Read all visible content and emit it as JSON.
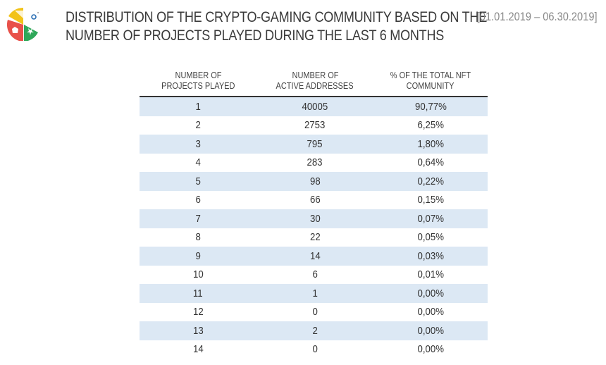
{
  "title_line1": "DISTRIBUTION OF THE CRYPTO-GAMING COMMUNITY BASED ON THE",
  "title_line2": "NUMBER OF PROJECTS PLAYED DURING THE LAST 6 MONTHS",
  "period": "[01.01.2019 – 06.30.2019]",
  "headers": [
    [
      "NUMBER OF",
      "PROJECTS PLAYED"
    ],
    [
      "NUMBER OF",
      "ACTIVE ADDRESSES"
    ],
    [
      "% OF THE TOTAL NFT",
      "COMMUNITY"
    ]
  ],
  "rows": [
    [
      "1",
      "40005",
      "90,77%"
    ],
    [
      "2",
      "2753",
      "6,25%"
    ],
    [
      "3",
      "795",
      "1,80%"
    ],
    [
      "4",
      "283",
      "0,64%"
    ],
    [
      "5",
      "98",
      "0,22%"
    ],
    [
      "6",
      "66",
      "0,15%"
    ],
    [
      "7",
      "30",
      "0,07%"
    ],
    [
      "8",
      "22",
      "0,05%"
    ],
    [
      "9",
      "14",
      "0,03%"
    ],
    [
      "10",
      "6",
      "0,01%"
    ],
    [
      "11",
      "1",
      "0,00%"
    ],
    [
      "12",
      "0",
      "0,00%"
    ],
    [
      "13",
      "2",
      "0,00%"
    ],
    [
      "14",
      "0",
      "0,00%"
    ]
  ],
  "colors": {
    "row_alt": "#dce8f4",
    "yellow": "#f2c318",
    "red": "#e8514a",
    "green": "#2fa85a",
    "blue": "#2c6fb4"
  }
}
